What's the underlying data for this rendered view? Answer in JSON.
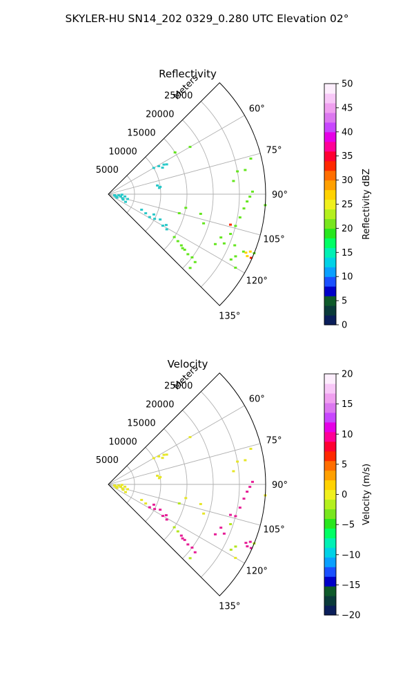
{
  "suptitle": "SKYLER-HU  SN14_202  0329_0.280 UTC Elevation 02°",
  "chart_data": [
    {
      "type": "scatter",
      "projection": "polar-sector",
      "title": "Reflectivity",
      "range_label": "Meters",
      "angle_range_deg": [
        45,
        135
      ],
      "range_lim": [
        0,
        30000
      ],
      "grid": true,
      "range_ticks": [
        5000,
        10000,
        15000,
        20000,
        25000
      ],
      "angle_ticks": [
        60,
        75,
        90,
        105,
        120,
        135
      ],
      "angle_tick_labels": [
        "60°",
        "75°",
        "90°",
        "105°",
        "120°",
        "135°"
      ],
      "colorbar": {
        "label": "Reflectivity dBZ",
        "range": [
          0,
          50
        ],
        "ticks": [
          "0",
          "5",
          "10",
          "15",
          "20",
          "25",
          "30",
          "35",
          "40",
          "45",
          "50"
        ],
        "colors": [
          "#0a1e5a",
          "#0a3a3a",
          "#0e5a2a",
          "#0000c8",
          "#1a50ff",
          "#0aa0ff",
          "#00d2e6",
          "#00f0b4",
          "#00ff64",
          "#28e61e",
          "#78e61e",
          "#b4f01e",
          "#f0f01e",
          "#ffd200",
          "#ffa000",
          "#ff6e00",
          "#ff2800",
          "#ff0032",
          "#ff0096",
          "#e600e6",
          "#c846ff",
          "#dc78f0",
          "#f0a0f0",
          "#f8c8f8",
          "#fdeefd"
        ]
      },
      "series": [
        {
          "color": "#28c8c8",
          "points": [
            {
              "az": 100,
              "r": 1200
            },
            {
              "az": 104,
              "r": 1400
            },
            {
              "az": 108,
              "r": 1600
            },
            {
              "az": 112,
              "r": 1800
            },
            {
              "az": 96,
              "r": 2000
            },
            {
              "az": 100,
              "r": 2400
            },
            {
              "az": 106,
              "r": 2800
            },
            {
              "az": 110,
              "r": 3000
            },
            {
              "az": 92,
              "r": 2600
            },
            {
              "az": 98,
              "r": 3200
            },
            {
              "az": 114,
              "r": 3600
            },
            {
              "az": 104,
              "r": 3800
            },
            {
              "az": 60,
              "r": 10000
            },
            {
              "az": 61,
              "r": 11000
            },
            {
              "az": 62,
              "r": 12000
            },
            {
              "az": 63,
              "r": 12500
            },
            {
              "az": 64,
              "r": 11500
            },
            {
              "az": 80,
              "r": 9500
            },
            {
              "az": 82,
              "r": 10000
            },
            {
              "az": 83,
              "r": 9800
            },
            {
              "az": 115,
              "r": 7000
            },
            {
              "az": 117,
              "r": 8000
            },
            {
              "az": 119,
              "r": 9000
            },
            {
              "az": 118,
              "r": 10000
            },
            {
              "az": 116,
              "r": 11000
            },
            {
              "az": 114,
              "r": 9500
            },
            {
              "az": 120,
              "r": 12000
            },
            {
              "az": 121,
              "r": 13000
            },
            {
              "az": 118,
              "r": 12500
            }
          ]
        },
        {
          "color": "#64e61e",
          "points": [
            {
              "az": 123,
              "r": 15000
            },
            {
              "az": 124,
              "r": 16000
            },
            {
              "az": 125,
              "r": 17000
            },
            {
              "az": 126,
              "r": 18000
            },
            {
              "az": 127,
              "r": 19000
            },
            {
              "az": 127,
              "r": 20000
            },
            {
              "az": 128,
              "r": 21000
            },
            {
              "az": 126,
              "r": 17500
            },
            {
              "az": 115,
              "r": 22500
            },
            {
              "az": 113,
              "r": 24000
            },
            {
              "az": 111,
              "r": 23000
            },
            {
              "az": 108,
              "r": 24500
            },
            {
              "az": 104,
              "r": 25000
            },
            {
              "az": 100,
              "r": 25500
            },
            {
              "az": 96,
              "r": 26000
            },
            {
              "az": 93,
              "r": 26500
            },
            {
              "az": 91,
              "r": 27000
            },
            {
              "az": 89,
              "r": 27500
            },
            {
              "az": 80,
              "r": 26500
            },
            {
              "az": 76,
              "r": 28000
            },
            {
              "az": 60,
              "r": 18000
            },
            {
              "az": 58,
              "r": 15000
            },
            {
              "az": 100,
              "r": 15000
            },
            {
              "az": 102,
              "r": 18000
            },
            {
              "az": 113,
              "r": 28000
            },
            {
              "az": 116,
              "r": 27000
            },
            {
              "az": 118,
              "r": 26500
            },
            {
              "az": 112,
              "r": 26000
            },
            {
              "az": 120,
              "r": 28000
            },
            {
              "az": 112,
              "r": 30000
            },
            {
              "az": 132,
              "r": 21000
            },
            {
              "az": 105,
              "r": 14000
            },
            {
              "az": 107,
              "r": 19000
            },
            {
              "az": 94,
              "r": 30000
            },
            {
              "az": 84,
              "r": 24000
            },
            {
              "az": 80,
              "r": 25000
            }
          ]
        },
        {
          "color": "#ffd200",
          "points": [
            {
              "az": 113,
              "r": 28500
            },
            {
              "az": 114,
              "r": 29000
            },
            {
              "az": 112,
              "r": 29200
            }
          ]
        },
        {
          "color": "#ff2800",
          "points": [
            {
              "az": 104,
              "r": 24000
            },
            {
              "az": 114,
              "r": 29800
            }
          ]
        }
      ]
    },
    {
      "type": "scatter",
      "projection": "polar-sector",
      "title": "Velocity",
      "range_label": "Meters",
      "angle_range_deg": [
        45,
        135
      ],
      "range_lim": [
        0,
        30000
      ],
      "grid": true,
      "range_ticks": [
        5000,
        10000,
        15000,
        20000,
        25000
      ],
      "angle_ticks": [
        60,
        75,
        90,
        105,
        120,
        135
      ],
      "angle_tick_labels": [
        "60°",
        "75°",
        "90°",
        "105°",
        "120°",
        "135°"
      ],
      "colorbar": {
        "label": "Velocity (m/s)",
        "range": [
          -20,
          20
        ],
        "ticks": [
          "−20",
          "−15",
          "−10",
          "−5",
          "0",
          "5",
          "10",
          "15",
          "20"
        ],
        "colors": [
          "#0a1e5a",
          "#0a3a3a",
          "#0e5a2a",
          "#0000c8",
          "#1a50ff",
          "#0aa0ff",
          "#00d2e6",
          "#00f0b4",
          "#00ff64",
          "#28e61e",
          "#78e61e",
          "#b4f01e",
          "#f0f01e",
          "#ffd200",
          "#ffa000",
          "#ff6e00",
          "#ff2800",
          "#ff0032",
          "#ff0096",
          "#e600e6",
          "#c846ff",
          "#dc78f0",
          "#f0a0f0",
          "#f8c8f8",
          "#fdeefd"
        ]
      },
      "series": [
        {
          "color": "#e6e628",
          "points": [
            {
              "az": 100,
              "r": 1200
            },
            {
              "az": 104,
              "r": 1400
            },
            {
              "az": 108,
              "r": 1600
            },
            {
              "az": 112,
              "r": 1800
            },
            {
              "az": 96,
              "r": 2000
            },
            {
              "az": 100,
              "r": 2400
            },
            {
              "az": 106,
              "r": 2800
            },
            {
              "az": 110,
              "r": 3000
            },
            {
              "az": 92,
              "r": 2600
            },
            {
              "az": 98,
              "r": 3200
            },
            {
              "az": 114,
              "r": 3600
            },
            {
              "az": 104,
              "r": 3800
            },
            {
              "az": 60,
              "r": 10000
            },
            {
              "az": 61,
              "r": 11000
            },
            {
              "az": 62,
              "r": 12000
            },
            {
              "az": 63,
              "r": 12500
            },
            {
              "az": 64,
              "r": 11500
            },
            {
              "az": 80,
              "r": 9500
            },
            {
              "az": 82,
              "r": 10000
            },
            {
              "az": 83,
              "r": 9800
            },
            {
              "az": 115,
              "r": 7000
            },
            {
              "az": 117,
              "r": 8000
            },
            {
              "az": 80,
              "r": 26500
            },
            {
              "az": 76,
              "r": 28000
            },
            {
              "az": 60,
              "r": 18000
            },
            {
              "az": 100,
              "r": 15000
            },
            {
              "az": 102,
              "r": 18000
            },
            {
              "az": 107,
              "r": 19000
            },
            {
              "az": 94,
              "r": 30000
            },
            {
              "az": 84,
              "r": 24000
            },
            {
              "az": 80,
              "r": 25000
            },
            {
              "az": 120,
              "r": 28000
            }
          ]
        },
        {
          "color": "#b4e61e",
          "points": [
            {
              "az": 123,
              "r": 15000
            },
            {
              "az": 124,
              "r": 16000
            },
            {
              "az": 132,
              "r": 21000
            },
            {
              "az": 105,
              "r": 14000
            },
            {
              "az": 112,
              "r": 30000
            },
            {
              "az": 108,
              "r": 24500
            },
            {
              "az": 116,
              "r": 27000
            },
            {
              "az": 118,
              "r": 26500
            }
          ]
        },
        {
          "color": "#e61e96",
          "points": [
            {
              "az": 119,
              "r": 9000
            },
            {
              "az": 118,
              "r": 10000
            },
            {
              "az": 116,
              "r": 11000
            },
            {
              "az": 114,
              "r": 9500
            },
            {
              "az": 120,
              "r": 12000
            },
            {
              "az": 121,
              "r": 13000
            },
            {
              "az": 118,
              "r": 12500
            },
            {
              "az": 125,
              "r": 17000
            },
            {
              "az": 126,
              "r": 18000
            },
            {
              "az": 127,
              "r": 19000
            },
            {
              "az": 127,
              "r": 20000
            },
            {
              "az": 128,
              "r": 21000
            },
            {
              "az": 126,
              "r": 17500
            },
            {
              "az": 115,
              "r": 22500
            },
            {
              "az": 113,
              "r": 24000
            },
            {
              "az": 111,
              "r": 23000
            },
            {
              "az": 104,
              "r": 25000
            },
            {
              "az": 100,
              "r": 25500
            },
            {
              "az": 96,
              "r": 26000
            },
            {
              "az": 93,
              "r": 26500
            },
            {
              "az": 91,
              "r": 27000
            },
            {
              "az": 89,
              "r": 27500
            },
            {
              "az": 113,
              "r": 28500
            },
            {
              "az": 114,
              "r": 29000
            },
            {
              "az": 112,
              "r": 29200
            },
            {
              "az": 104,
              "r": 24000
            },
            {
              "az": 114,
              "r": 29800
            }
          ]
        }
      ]
    }
  ]
}
